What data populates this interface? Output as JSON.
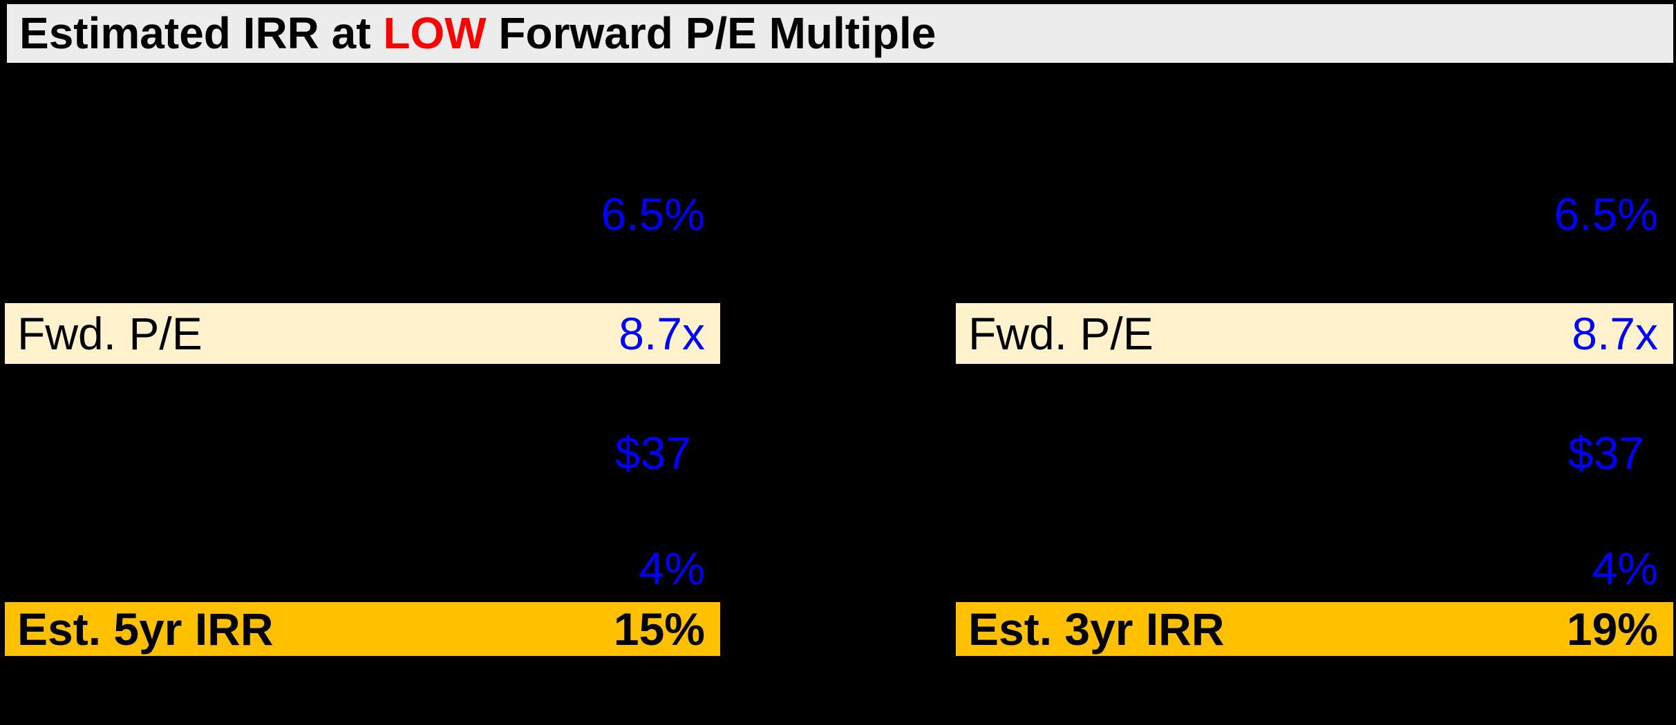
{
  "title": {
    "prefix": "Estimated IRR at ",
    "highlight": "LOW",
    "suffix": " Forward P/E Multiple"
  },
  "colors": {
    "page_background": "#000000",
    "banner_background": "#ECECEC",
    "title_text": "#000000",
    "title_highlight": "#FF0000",
    "input_value_blue": "#0000FF",
    "input_row_fill": "#FFF2CC",
    "result_row_fill": "#FFC000",
    "result_text": "#000000"
  },
  "panels": [
    {
      "id": "left",
      "rows": [
        {
          "type": "value",
          "value": "6.5%"
        },
        {
          "type": "input",
          "label": "Fwd. P/E",
          "value": "8.7x"
        },
        {
          "type": "value",
          "value": "$37"
        },
        {
          "type": "value",
          "value": "4%"
        },
        {
          "type": "result",
          "label": "Est. 5yr IRR",
          "value": "15%"
        }
      ]
    },
    {
      "id": "right",
      "rows": [
        {
          "type": "value",
          "value": "6.5%"
        },
        {
          "type": "input",
          "label": "Fwd. P/E",
          "value": "8.7x"
        },
        {
          "type": "value",
          "value": "$37"
        },
        {
          "type": "value",
          "value": "4%"
        },
        {
          "type": "result",
          "label": "Est. 3yr IRR",
          "value": "19%"
        }
      ]
    }
  ]
}
